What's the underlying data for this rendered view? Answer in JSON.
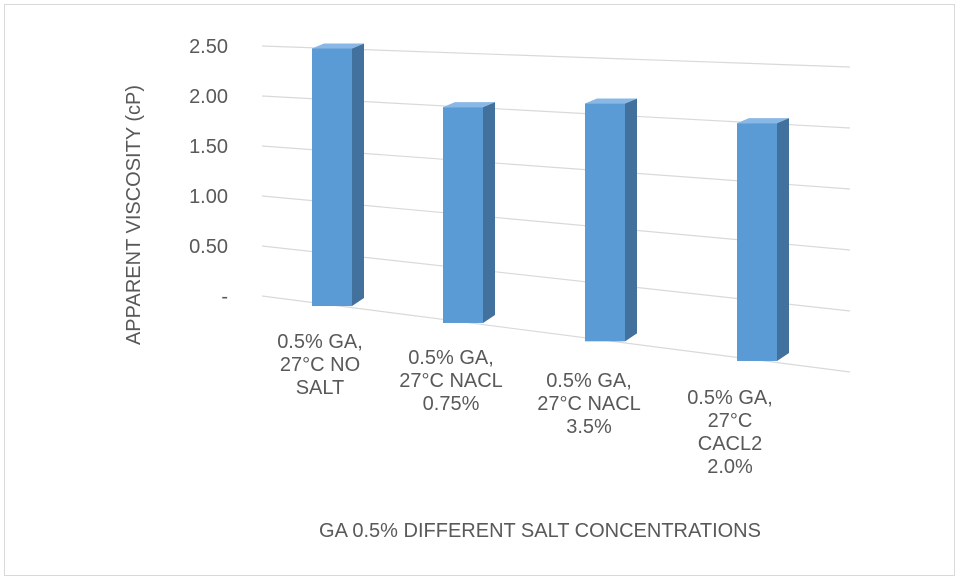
{
  "chart_data": {
    "type": "bar",
    "title": "",
    "xlabel": "GA 0.5% DIFFERENT SALT CONCENTRATIONS",
    "ylabel": "APPARENT VISCOSITY (cP)",
    "ylim": [
      0,
      2.5
    ],
    "yticks": [
      "-",
      "0.50",
      "1.00",
      "1.50",
      "2.00",
      "2.50"
    ],
    "categories": [
      [
        "0.5% GA,",
        "27°C NO",
        "SALT"
      ],
      [
        "0.5% GA,",
        "27°C NACL",
        "0.75%"
      ],
      [
        "0.5% GA,",
        "27°C NACL",
        "3.5%"
      ],
      [
        "0.5% GA,",
        "27°C",
        "CACL2",
        "2.0%"
      ]
    ],
    "values": [
      2.5,
      2.0,
      2.1,
      2.0
    ],
    "grid": true,
    "style": "3d-column",
    "colors": {
      "front": "#5b9bd5",
      "side": "#41719c",
      "top": "#8ab8e6",
      "grid": "#d9d9d9",
      "text": "#595959"
    }
  }
}
